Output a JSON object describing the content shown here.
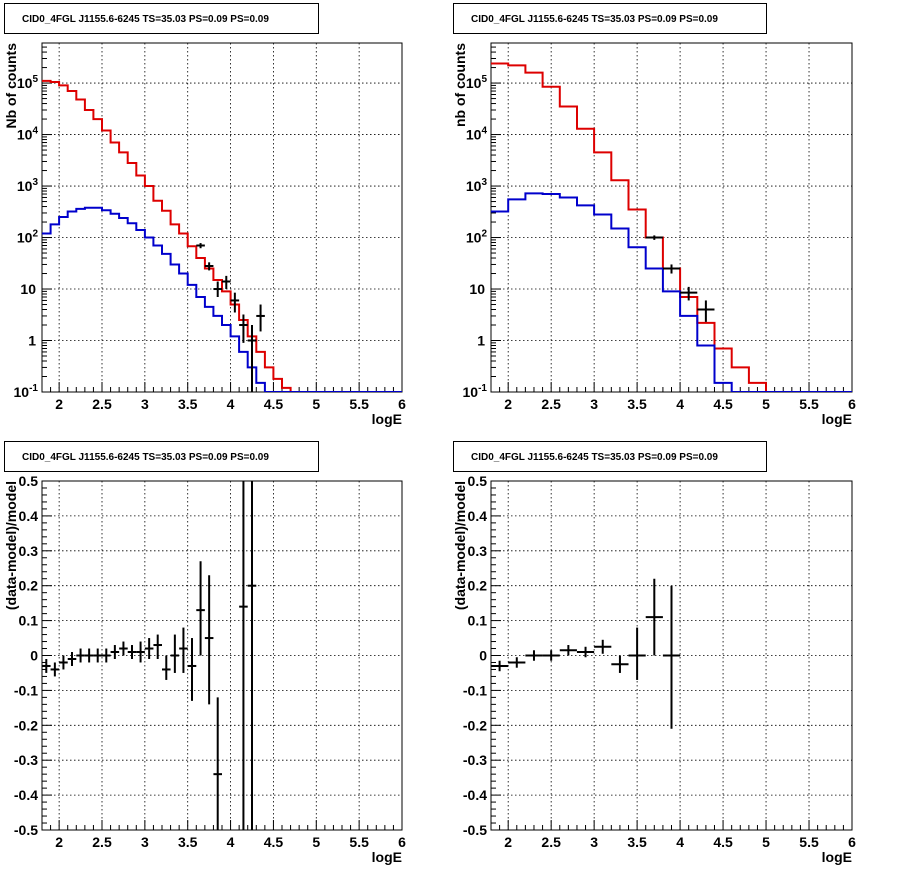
{
  "chart_data": [
    {
      "id": "p1",
      "type": "line",
      "title": "CID0_4FGL J1155.6-6245 TS=35.03 PS=0.09 PS=0.09",
      "xlabel": "logE",
      "ylabel": "Nb of counts",
      "xlim": [
        1.8,
        6.0
      ],
      "ylim": [
        0.1,
        600000
      ],
      "yscale": "log",
      "grid": true,
      "x_ticks": [
        "2",
        "2.5",
        "3",
        "3.5",
        "4",
        "4.5",
        "5",
        "5.5",
        "6"
      ],
      "y_ticks": [
        "10^-1",
        "1",
        "10",
        "10^2",
        "10^3",
        "10^4",
        "10^5"
      ],
      "bin_edges": [
        1.8,
        1.9,
        2.0,
        2.1,
        2.2,
        2.3,
        2.4,
        2.5,
        2.6,
        2.7,
        2.8,
        2.9,
        3.0,
        3.1,
        3.2,
        3.3,
        3.4,
        3.5,
        3.6,
        3.7,
        3.8,
        3.9,
        4.0,
        4.1,
        4.2,
        4.3,
        4.4,
        4.5,
        4.6,
        4.7,
        4.8,
        4.9,
        5.0,
        5.1,
        5.2,
        5.3,
        5.4,
        5.5,
        5.6,
        5.7,
        5.8,
        5.9,
        6.0
      ],
      "series": [
        {
          "color": "#dd0000",
          "kind": "step",
          "values": [
            110000,
            105000,
            90000,
            70000,
            48000,
            30000,
            20000,
            12000,
            7000,
            4500,
            2800,
            1600,
            1000,
            520,
            330,
            180,
            120,
            68,
            40,
            25,
            15,
            9,
            5,
            2.5,
            1.2,
            0.6,
            0.3,
            0.18,
            0.12,
            0.1,
            0.1,
            0.1,
            0.1,
            0.1,
            0.1,
            0.1,
            0.1,
            0.1,
            0.1,
            0.1,
            0.1,
            0.1
          ]
        },
        {
          "color": "#0000cc",
          "kind": "step",
          "values": [
            120,
            180,
            250,
            320,
            360,
            380,
            380,
            340,
            290,
            240,
            190,
            140,
            100,
            70,
            48,
            30,
            20,
            12,
            7,
            4.5,
            3,
            2,
            1.2,
            0.6,
            0.3,
            0.15,
            0.1,
            0.1,
            0.1,
            0.1,
            0.1,
            0.1,
            0.1,
            0.1,
            0.1,
            0.1,
            0.1,
            0.1,
            0.1,
            0.1,
            0.1,
            0.1
          ]
        },
        {
          "color": "#000000",
          "kind": "errors",
          "points": [
            {
              "x": 3.65,
              "y": 70,
              "xerr": 0.05,
              "ylo": 62,
              "yhi": 78
            },
            {
              "x": 3.75,
              "y": 28,
              "xerr": 0.05,
              "ylo": 23,
              "yhi": 33
            },
            {
              "x": 3.85,
              "y": 10,
              "xerr": 0.05,
              "ylo": 7,
              "yhi": 14
            },
            {
              "x": 3.95,
              "y": 14,
              "xerr": 0.05,
              "ylo": 10,
              "yhi": 18
            },
            {
              "x": 4.05,
              "y": 6,
              "xerr": 0.05,
              "ylo": 3.5,
              "yhi": 8.5
            },
            {
              "x": 4.15,
              "y": 2,
              "xerr": 0.05,
              "ylo": 0.9,
              "yhi": 3.2
            },
            {
              "x": 4.25,
              "y": 1,
              "xerr": 0.05,
              "ylo": 0.1,
              "yhi": 2
            },
            {
              "x": 4.35,
              "y": 3,
              "xerr": 0.05,
              "ylo": 1.5,
              "yhi": 5
            }
          ]
        }
      ]
    },
    {
      "id": "p2",
      "type": "line",
      "title": "CID0_4FGL J1155.6-6245 TS=35.03 PS=0.09 PS=0.09",
      "xlabel": "logE",
      "ylabel": "nb of counts",
      "xlim": [
        1.8,
        6.0
      ],
      "ylim": [
        0.1,
        600000
      ],
      "yscale": "log",
      "grid": true,
      "x_ticks": [
        "2",
        "2.5",
        "3",
        "3.5",
        "4",
        "4.5",
        "5",
        "5.5",
        "6"
      ],
      "y_ticks": [
        "10^-1",
        "1",
        "10",
        "10^2",
        "10^3",
        "10^4",
        "10^5"
      ],
      "bin_edges": [
        1.8,
        2.0,
        2.2,
        2.4,
        2.6,
        2.8,
        3.0,
        3.2,
        3.4,
        3.6,
        3.8,
        4.0,
        4.2,
        4.4,
        4.6,
        4.8,
        5.0,
        5.2,
        5.4,
        5.6,
        5.8,
        6.0
      ],
      "series": [
        {
          "color": "#dd0000",
          "kind": "step",
          "values": [
            240000,
            220000,
            160000,
            85000,
            35000,
            13000,
            4500,
            1300,
            350,
            100,
            25,
            7,
            2.2,
            0.7,
            0.3,
            0.15,
            0.1,
            0.1,
            0.1,
            0.1,
            0.1
          ]
        },
        {
          "color": "#0000cc",
          "kind": "step",
          "values": [
            320,
            550,
            720,
            700,
            600,
            420,
            280,
            150,
            65,
            25,
            9,
            3,
            0.8,
            0.15,
            0.1,
            0.1,
            0.1,
            0.1,
            0.1,
            0.1,
            0.1
          ]
        },
        {
          "color": "#000000",
          "kind": "errors",
          "points": [
            {
              "x": 3.7,
              "y": 100,
              "xerr": 0.1,
              "ylo": 90,
              "yhi": 110
            },
            {
              "x": 3.9,
              "y": 25,
              "xerr": 0.1,
              "ylo": 20,
              "yhi": 30
            },
            {
              "x": 4.1,
              "y": 8.5,
              "xerr": 0.1,
              "ylo": 6,
              "yhi": 11
            },
            {
              "x": 4.3,
              "y": 4,
              "xerr": 0.1,
              "ylo": 2.3,
              "yhi": 6
            }
          ]
        }
      ]
    },
    {
      "id": "p3",
      "type": "scatter",
      "title": "CID0_4FGL J1155.6-6245 TS=35.03 PS=0.09 PS=0.09",
      "xlabel": "logE",
      "ylabel": "(data-model)/model",
      "xlim": [
        1.8,
        6.0
      ],
      "ylim": [
        -0.5,
        0.5
      ],
      "yscale": "linear",
      "grid": true,
      "x_ticks": [
        "2",
        "2.5",
        "3",
        "3.5",
        "4",
        "4.5",
        "5",
        "5.5",
        "6"
      ],
      "y_ticks": [
        "-0.5",
        "-0.4",
        "-0.3",
        "-0.2",
        "-0.1",
        "0",
        "0.1",
        "0.2",
        "0.3",
        "0.4",
        "0.5"
      ],
      "series": [
        {
          "color": "#000000",
          "kind": "errors",
          "points": [
            {
              "x": 1.85,
              "y": -0.03,
              "xerr": 0.05,
              "ylo": -0.05,
              "yhi": -0.01
            },
            {
              "x": 1.95,
              "y": -0.04,
              "xerr": 0.05,
              "ylo": -0.06,
              "yhi": -0.02
            },
            {
              "x": 2.05,
              "y": -0.02,
              "xerr": 0.05,
              "ylo": -0.04,
              "yhi": 0.0
            },
            {
              "x": 2.15,
              "y": -0.01,
              "xerr": 0.05,
              "ylo": -0.03,
              "yhi": 0.01
            },
            {
              "x": 2.25,
              "y": 0.0,
              "xerr": 0.05,
              "ylo": -0.02,
              "yhi": 0.02
            },
            {
              "x": 2.35,
              "y": 0.0,
              "xerr": 0.05,
              "ylo": -0.02,
              "yhi": 0.02
            },
            {
              "x": 2.45,
              "y": 0.0,
              "xerr": 0.05,
              "ylo": -0.02,
              "yhi": 0.02
            },
            {
              "x": 2.55,
              "y": 0.0,
              "xerr": 0.05,
              "ylo": -0.02,
              "yhi": 0.02
            },
            {
              "x": 2.65,
              "y": 0.01,
              "xerr": 0.05,
              "ylo": -0.01,
              "yhi": 0.03
            },
            {
              "x": 2.75,
              "y": 0.02,
              "xerr": 0.05,
              "ylo": 0.0,
              "yhi": 0.04
            },
            {
              "x": 2.85,
              "y": 0.01,
              "xerr": 0.05,
              "ylo": -0.01,
              "yhi": 0.03
            },
            {
              "x": 2.95,
              "y": 0.01,
              "xerr": 0.05,
              "ylo": -0.02,
              "yhi": 0.04
            },
            {
              "x": 3.05,
              "y": 0.02,
              "xerr": 0.05,
              "ylo": -0.01,
              "yhi": 0.05
            },
            {
              "x": 3.15,
              "y": 0.03,
              "xerr": 0.05,
              "ylo": -0.01,
              "yhi": 0.06
            },
            {
              "x": 3.25,
              "y": -0.04,
              "xerr": 0.05,
              "ylo": -0.07,
              "yhi": 0.0
            },
            {
              "x": 3.35,
              "y": 0.0,
              "xerr": 0.05,
              "ylo": -0.05,
              "yhi": 0.06
            },
            {
              "x": 3.45,
              "y": 0.02,
              "xerr": 0.05,
              "ylo": -0.05,
              "yhi": 0.08
            },
            {
              "x": 3.55,
              "y": -0.03,
              "xerr": 0.05,
              "ylo": -0.13,
              "yhi": 0.05
            },
            {
              "x": 3.65,
              "y": 0.13,
              "xerr": 0.05,
              "ylo": 0.0,
              "yhi": 0.27
            },
            {
              "x": 3.75,
              "y": 0.05,
              "xerr": 0.05,
              "ylo": -0.14,
              "yhi": 0.23
            },
            {
              "x": 3.85,
              "y": -0.34,
              "xerr": 0.05,
              "ylo": -0.5,
              "yhi": -0.12
            },
            {
              "x": 4.15,
              "y": 0.14,
              "xerr": 0.05,
              "ylo": -0.5,
              "yhi": 0.5
            },
            {
              "x": 4.25,
              "y": 0.2,
              "xerr": 0.05,
              "ylo": -0.5,
              "yhi": 0.5
            }
          ]
        }
      ]
    },
    {
      "id": "p4",
      "type": "scatter",
      "title": "CID0_4FGL J1155.6-6245 TS=35.03 PS=0.09 PS=0.09",
      "xlabel": "logE",
      "ylabel": "(data-model)/model",
      "xlim": [
        1.8,
        6.0
      ],
      "ylim": [
        -0.5,
        0.5
      ],
      "yscale": "linear",
      "grid": true,
      "x_ticks": [
        "2",
        "2.5",
        "3",
        "3.5",
        "4",
        "4.5",
        "5",
        "5.5",
        "6"
      ],
      "y_ticks": [
        "-0.5",
        "-0.4",
        "-0.3",
        "-0.2",
        "-0.1",
        "0",
        "0.1",
        "0.2",
        "0.3",
        "0.4",
        "0.5"
      ],
      "series": [
        {
          "color": "#000000",
          "kind": "errors",
          "points": [
            {
              "x": 1.9,
              "y": -0.03,
              "xerr": 0.1,
              "ylo": -0.045,
              "yhi": -0.015
            },
            {
              "x": 2.1,
              "y": -0.02,
              "xerr": 0.1,
              "ylo": -0.035,
              "yhi": -0.005
            },
            {
              "x": 2.3,
              "y": 0.0,
              "xerr": 0.1,
              "ylo": -0.015,
              "yhi": 0.015
            },
            {
              "x": 2.5,
              "y": 0.0,
              "xerr": 0.1,
              "ylo": -0.015,
              "yhi": 0.015
            },
            {
              "x": 2.7,
              "y": 0.015,
              "xerr": 0.1,
              "ylo": 0.0,
              "yhi": 0.03
            },
            {
              "x": 2.9,
              "y": 0.01,
              "xerr": 0.1,
              "ylo": -0.005,
              "yhi": 0.025
            },
            {
              "x": 3.1,
              "y": 0.025,
              "xerr": 0.1,
              "ylo": 0.005,
              "yhi": 0.045
            },
            {
              "x": 3.3,
              "y": -0.025,
              "xerr": 0.1,
              "ylo": -0.05,
              "yhi": 0.0
            },
            {
              "x": 3.5,
              "y": 0.0,
              "xerr": 0.1,
              "ylo": -0.07,
              "yhi": 0.08
            },
            {
              "x": 3.7,
              "y": 0.11,
              "xerr": 0.1,
              "ylo": 0.0,
              "yhi": 0.22
            },
            {
              "x": 3.9,
              "y": 0.0,
              "xerr": 0.1,
              "ylo": -0.21,
              "yhi": 0.2
            }
          ]
        }
      ]
    }
  ]
}
